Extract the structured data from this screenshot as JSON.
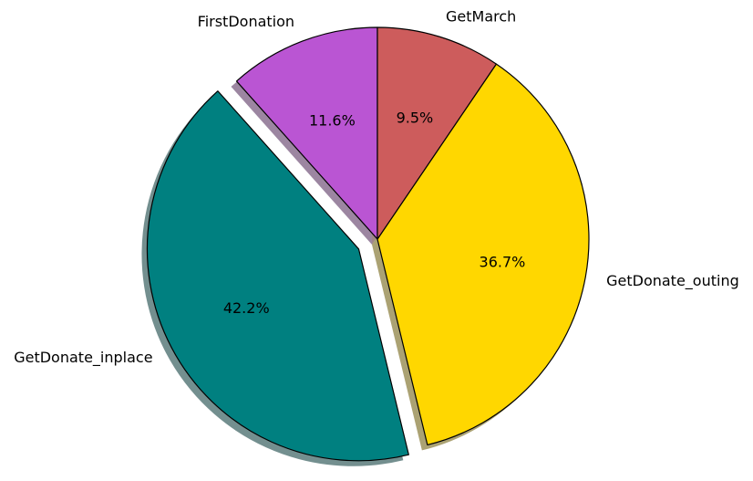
{
  "chart_data": {
    "type": "pie",
    "slices": [
      {
        "label": "FirstDonation",
        "value": 11.6,
        "pct_label": "11.6%",
        "color": "#BA55D3",
        "exploded": false
      },
      {
        "label": "GetDonate_inplace",
        "value": 42.2,
        "pct_label": "42.2%",
        "color": "#008080",
        "exploded": true
      },
      {
        "label": "GetDonate_outing",
        "value": 36.7,
        "pct_label": "36.7%",
        "color": "#FFD700",
        "exploded": false
      },
      {
        "label": "GetMarch",
        "value": 9.5,
        "pct_label": "9.5%",
        "color": "#CD5C5C",
        "exploded": false
      }
    ],
    "start_angle_deg": 90,
    "direction": "counterclockwise",
    "shadow": true,
    "legend": "none"
  }
}
